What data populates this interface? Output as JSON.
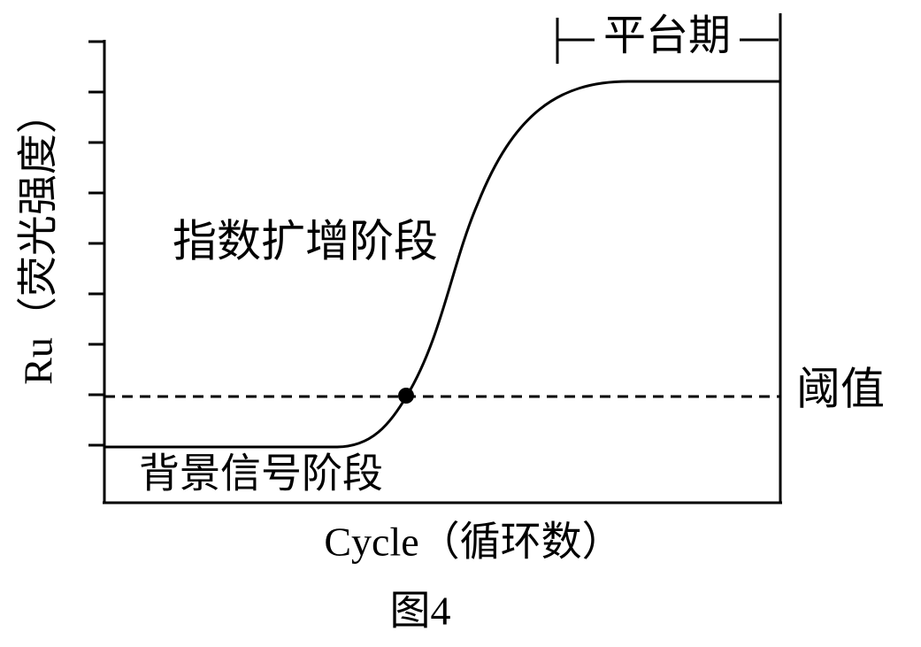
{
  "y_axis_label": "Ru（荧光强度）",
  "x_axis_label": "Cycle（循环数）",
  "caption": "图4",
  "labels": {
    "plateau": "平台期",
    "exponential": "指数扩增阶段",
    "background": "背景信号阶段",
    "threshold": "阈值"
  }
}
